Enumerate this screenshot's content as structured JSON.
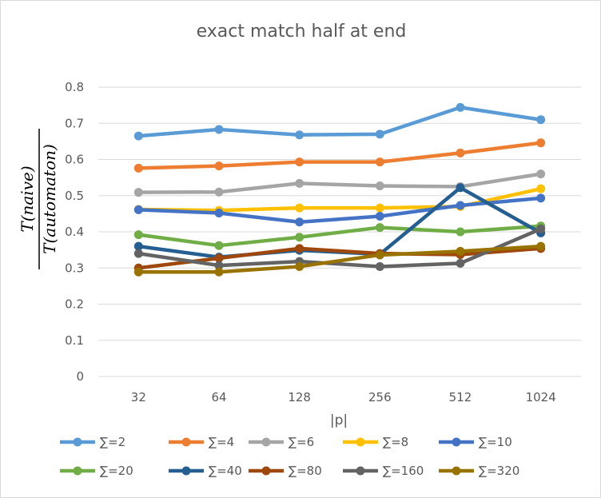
{
  "chart_data": {
    "type": "line",
    "title": "exact match half at end",
    "xlabel": "|p|",
    "ylabel_numerator": "T(naive)",
    "ylabel_denominator": "T(automaton)",
    "categories": [
      "32",
      "64",
      "128",
      "256",
      "512",
      "1024"
    ],
    "ylim": [
      0,
      0.8
    ],
    "yticks": [
      "0",
      "0.1",
      "0.2",
      "0.3",
      "0.4",
      "0.5",
      "0.6",
      "0.7",
      "0.8"
    ],
    "grid": true,
    "legend_position": "bottom",
    "series": [
      {
        "name": "∑=2",
        "color": "#5B9BD5",
        "values": [
          0.665,
          0.683,
          0.668,
          0.67,
          0.744,
          0.71
        ]
      },
      {
        "name": "∑=4",
        "color": "#ED7D31",
        "values": [
          0.576,
          0.582,
          0.593,
          0.593,
          0.618,
          0.646
        ]
      },
      {
        "name": "∑=6",
        "color": "#A5A5A5",
        "values": [
          0.509,
          0.51,
          0.534,
          0.527,
          0.525,
          0.56
        ]
      },
      {
        "name": "∑=8",
        "color": "#FFC000",
        "values": [
          0.462,
          0.459,
          0.466,
          0.466,
          0.47,
          0.519
        ]
      },
      {
        "name": "∑=10",
        "color": "#4472C4",
        "values": [
          0.461,
          0.452,
          0.427,
          0.443,
          0.473,
          0.493
        ]
      },
      {
        "name": "∑=20",
        "color": "#70AD47",
        "values": [
          0.392,
          0.362,
          0.385,
          0.412,
          0.4,
          0.416
        ]
      },
      {
        "name": "∑=40",
        "color": "#255E91",
        "values": [
          0.36,
          0.33,
          0.349,
          0.338,
          0.522,
          0.397
        ]
      },
      {
        "name": "∑=80",
        "color": "#9E480E",
        "values": [
          0.3,
          0.327,
          0.354,
          0.34,
          0.337,
          0.354
        ]
      },
      {
        "name": "∑=160",
        "color": "#636363",
        "values": [
          0.34,
          0.307,
          0.318,
          0.304,
          0.313,
          0.408
        ]
      },
      {
        "name": "∑=320",
        "color": "#997300",
        "values": [
          0.289,
          0.289,
          0.304,
          0.336,
          0.346,
          0.36
        ]
      }
    ]
  }
}
